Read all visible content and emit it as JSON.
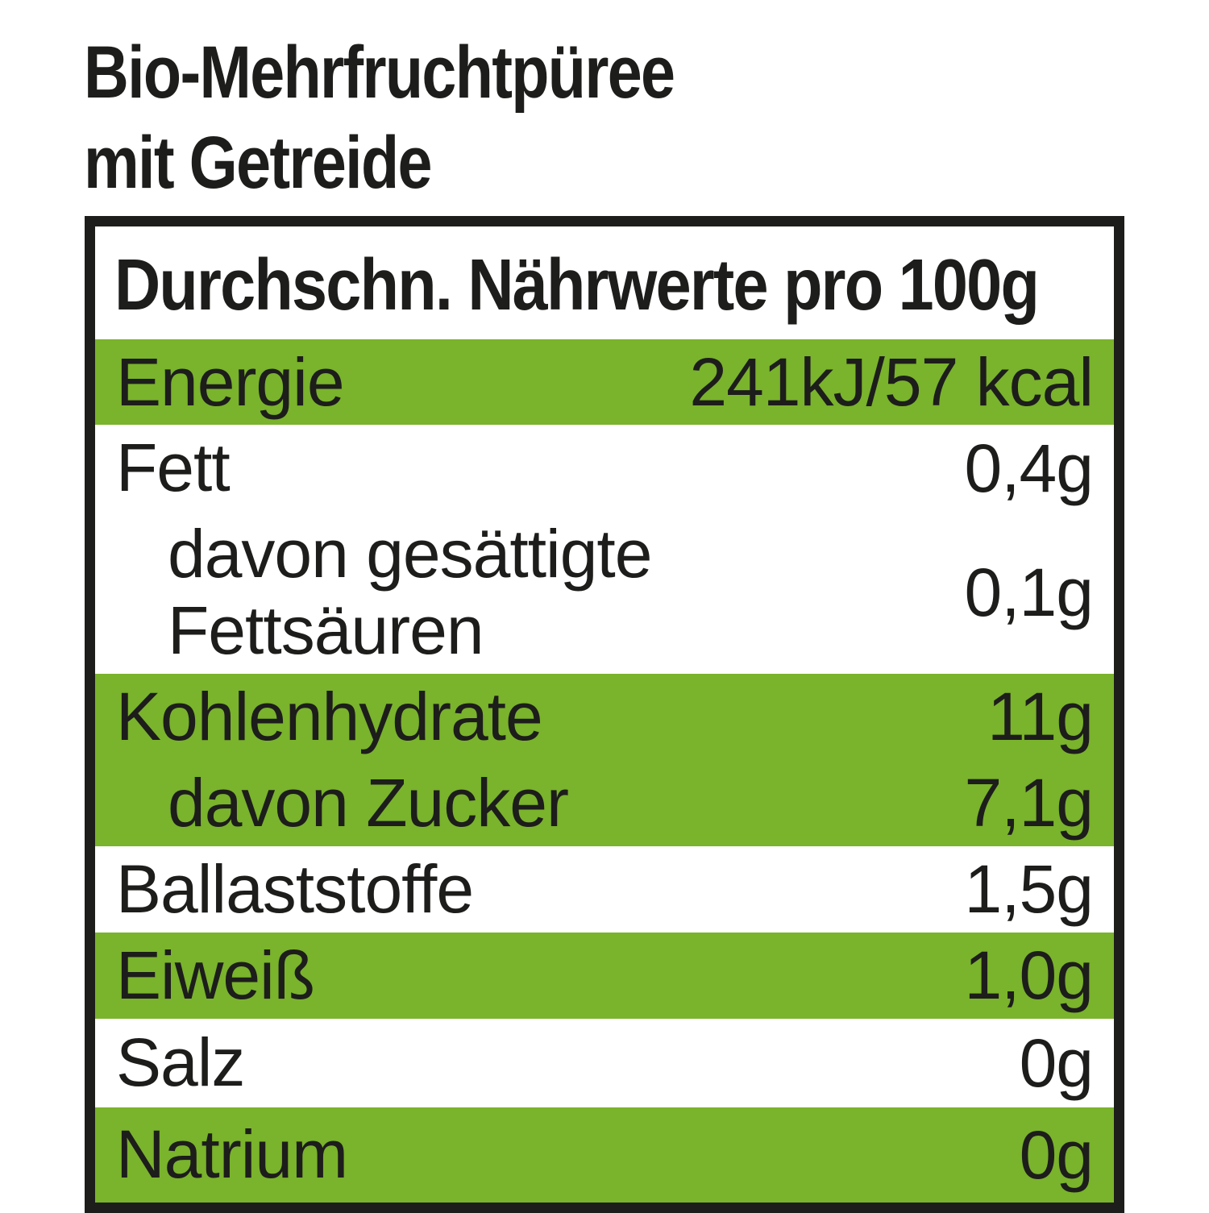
{
  "title": {
    "line1": "Bio-Mehrfruchtpüree",
    "line2": "mit Getreide"
  },
  "table": {
    "header": "Durchschn. Nährwerte pro 100g",
    "rows": [
      {
        "label": "Energie",
        "value": "241kJ/57 kcal",
        "highlight": true,
        "indent": false
      },
      {
        "label": "Fett",
        "value": "0,4g",
        "highlight": false,
        "indent": false
      },
      {
        "label": "davon gesättigte Fettsäuren",
        "value": "0,1g",
        "highlight": false,
        "indent": true
      },
      {
        "label": "Kohlenhydrate",
        "value": "11g",
        "highlight": true,
        "indent": false
      },
      {
        "label": "davon Zucker",
        "value": "7,1g",
        "highlight": true,
        "indent": true
      },
      {
        "label": "Ballaststoffe",
        "value": "1,5g",
        "highlight": false,
        "indent": false
      },
      {
        "label": "Eiweiß",
        "value": "1,0g",
        "highlight": true,
        "indent": false
      },
      {
        "label": "Salz",
        "value": "0g",
        "highlight": false,
        "indent": false
      },
      {
        "label": "Natrium",
        "value": "0g",
        "highlight": true,
        "indent": false
      }
    ],
    "colors": {
      "highlight": "#7ab32c",
      "text": "#1d1d1b",
      "border": "#1d1d1b",
      "background": "#ffffff"
    }
  }
}
